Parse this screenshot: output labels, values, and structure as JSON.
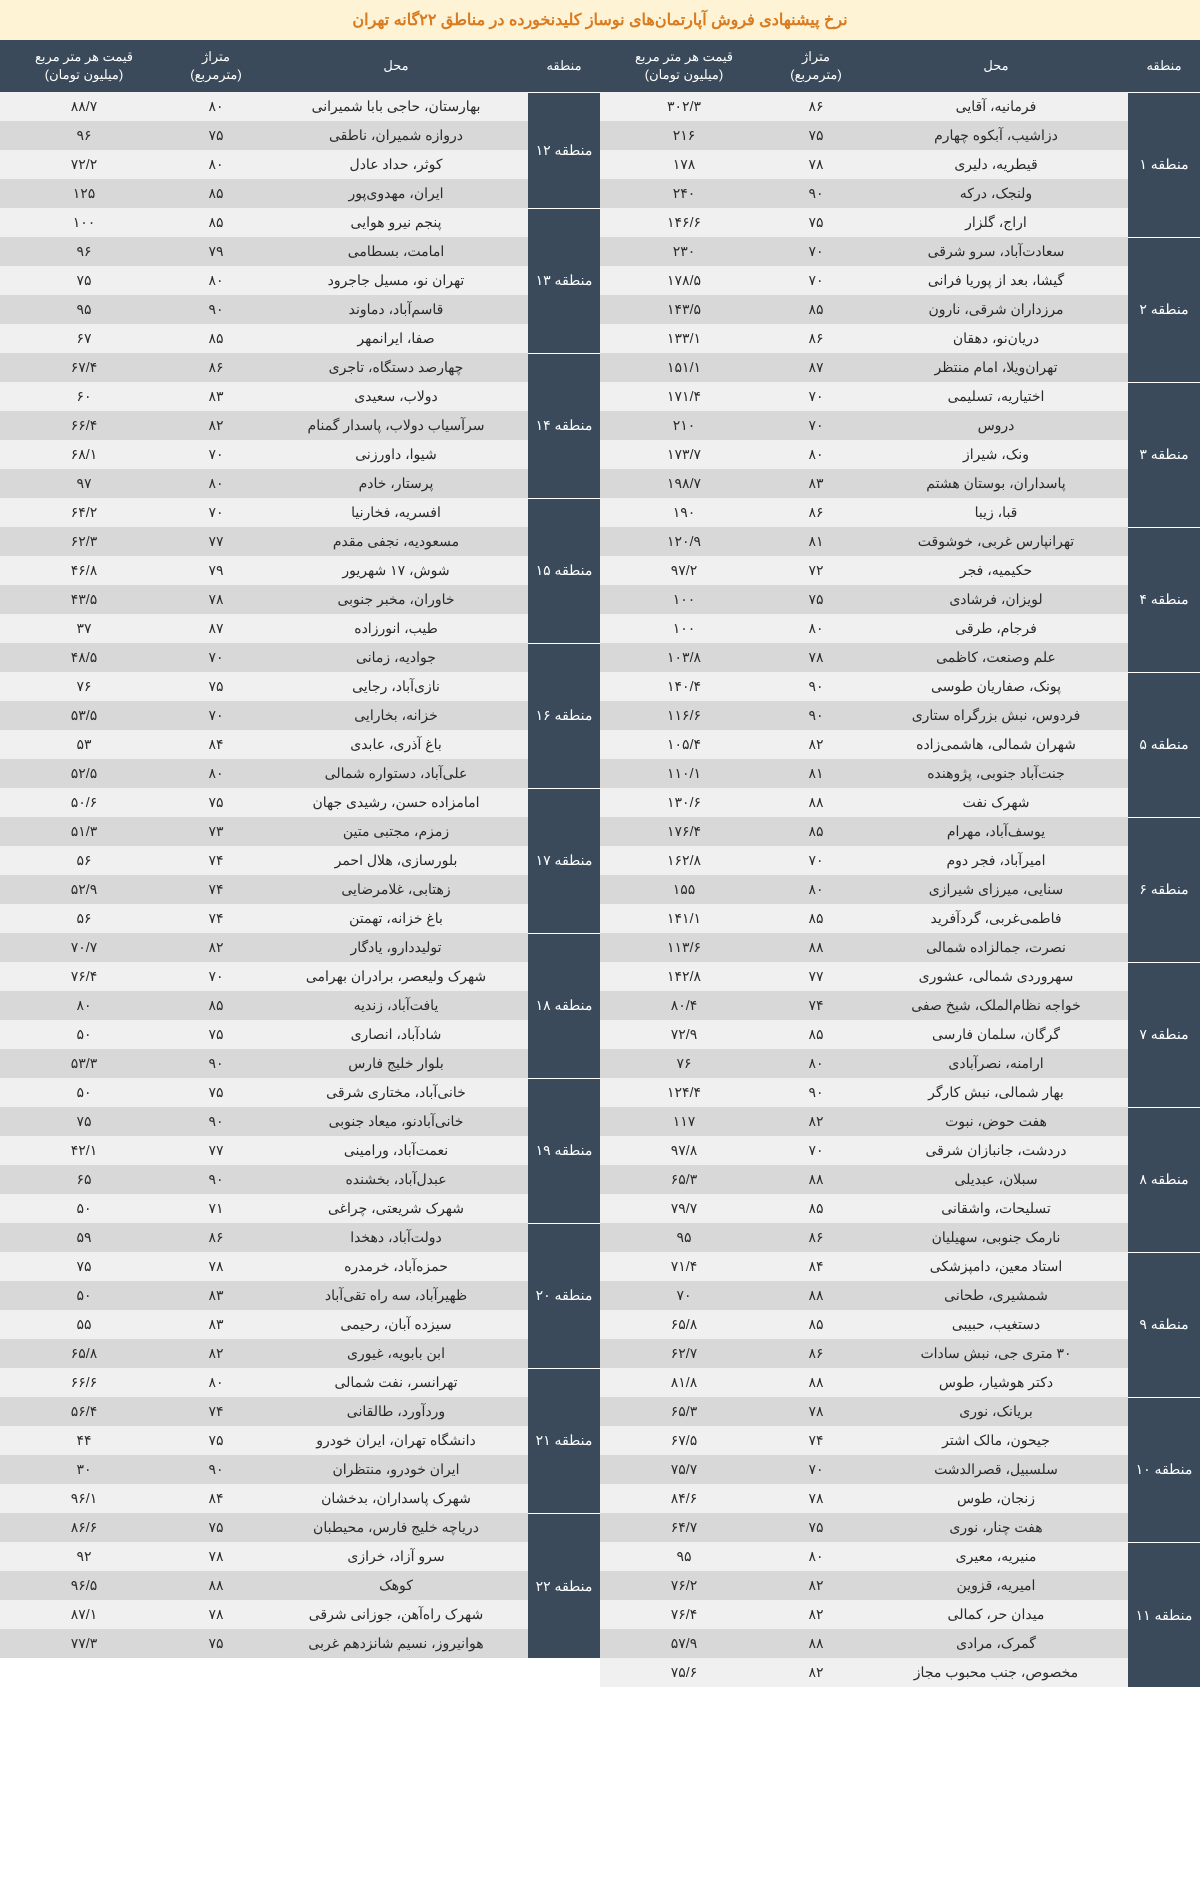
{
  "title": "نرخ پیشنهادی فروش آپارتمان‌های نوساز کلیدنخورده در مناطق ۲۲گانه تهران",
  "headers": {
    "region": "منطقه",
    "location": "محل",
    "area": "متراژ<br>(مترمربع)",
    "price": "قیمت هر متر مربع<br>(میلیون تومان)"
  },
  "colors": {
    "title_bg": "#fff3d6",
    "title_fg": "#d97b1f",
    "header_bg": "#3a4a5a",
    "header_fg": "#ffffff",
    "row_odd": "#f0f0f0",
    "row_even": "#d8d8d8"
  },
  "right": [
    {
      "region": "منطقه ۱",
      "rows": [
        {
          "loc": "فرمانیه، آقایی",
          "area": "۸۶",
          "price": "۳۰۲/۳"
        },
        {
          "loc": "دزاشیب، آبکوه چهارم",
          "area": "۷۵",
          "price": "۲۱۶"
        },
        {
          "loc": "قیطریه، دلیری",
          "area": "۷۸",
          "price": "۱۷۸"
        },
        {
          "loc": "ولنجک، درکه",
          "area": "۹۰",
          "price": "۲۴۰"
        },
        {
          "loc": "اراج، گلزار",
          "area": "۷۵",
          "price": "۱۴۶/۶"
        }
      ]
    },
    {
      "region": "منطقه ۲",
      "rows": [
        {
          "loc": "سعادت‌آباد، سرو شرقی",
          "area": "۷۰",
          "price": "۲۳۰"
        },
        {
          "loc": "گیشا، بعد از پوریا فرانی",
          "area": "۷۰",
          "price": "۱۷۸/۵"
        },
        {
          "loc": "مرزداران شرقی، نارون",
          "area": "۸۵",
          "price": "۱۴۳/۵"
        },
        {
          "loc": "دریان‌نو، دهقان",
          "area": "۸۶",
          "price": "۱۳۳/۱"
        },
        {
          "loc": "تهران‌ویلا، امام منتظر",
          "area": "۸۷",
          "price": "۱۵۱/۱"
        }
      ]
    },
    {
      "region": "منطقه ۳",
      "rows": [
        {
          "loc": "اختیاریه، تسلیمی",
          "area": "۷۰",
          "price": "۱۷۱/۴"
        },
        {
          "loc": "دروس",
          "area": "۷۰",
          "price": "۲۱۰"
        },
        {
          "loc": "ونک، شیراز",
          "area": "۸۰",
          "price": "۱۷۳/۷"
        },
        {
          "loc": "پاسداران، بوستان هشتم",
          "area": "۸۳",
          "price": "۱۹۸/۷"
        },
        {
          "loc": "قبا، زیبا",
          "area": "۸۶",
          "price": "۱۹۰"
        }
      ]
    },
    {
      "region": "منطقه ۴",
      "rows": [
        {
          "loc": "تهرانپارس غربی، خوشوقت",
          "area": "۸۱",
          "price": "۱۲۰/۹"
        },
        {
          "loc": "حکیمیه، فجر",
          "area": "۷۲",
          "price": "۹۷/۲"
        },
        {
          "loc": "لویزان، فرشادی",
          "area": "۷۵",
          "price": "۱۰۰"
        },
        {
          "loc": "فرجام، طرقی",
          "area": "۸۰",
          "price": "۱۰۰"
        },
        {
          "loc": "علم وصنعت، کاظمی",
          "area": "۷۸",
          "price": "۱۰۳/۸"
        }
      ]
    },
    {
      "region": "منطقه ۵",
      "rows": [
        {
          "loc": "پونک، صفاریان طوسی",
          "area": "۹۰",
          "price": "۱۴۰/۴"
        },
        {
          "loc": "فردوس، نبش بزرگراه ستاری",
          "area": "۹۰",
          "price": "۱۱۶/۶"
        },
        {
          "loc": "شهران شمالی، هاشمی‌زاده",
          "area": "۸۲",
          "price": "۱۰۵/۴"
        },
        {
          "loc": "جنت‌آباد جنوبی، پژوهنده",
          "area": "۸۱",
          "price": "۱۱۰/۱"
        },
        {
          "loc": "شهرک نفت",
          "area": "۸۸",
          "price": "۱۳۰/۶"
        }
      ]
    },
    {
      "region": "منطقه ۶",
      "rows": [
        {
          "loc": "یوسف‌آباد، مهرام",
          "area": "۸۵",
          "price": "۱۷۶/۴"
        },
        {
          "loc": "امیرآباد، فجر دوم",
          "area": "۷۰",
          "price": "۱۶۲/۸"
        },
        {
          "loc": "سنایی، میرزای شیرازی",
          "area": "۸۰",
          "price": "۱۵۵"
        },
        {
          "loc": "فاطمی‌غربی، گردآفرید",
          "area": "۸۵",
          "price": "۱۴۱/۱"
        },
        {
          "loc": "نصرت، جمالزاده شمالی",
          "area": "۸۸",
          "price": "۱۱۳/۶"
        }
      ]
    },
    {
      "region": "منطقه ۷",
      "rows": [
        {
          "loc": "سهروردی شمالی، عشوری",
          "area": "۷۷",
          "price": "۱۴۲/۸"
        },
        {
          "loc": "خواجه نظام‌الملک، شیخ صفی",
          "area": "۷۴",
          "price": "۸۰/۴"
        },
        {
          "loc": "گرگان، سلمان فارسی",
          "area": "۸۵",
          "price": "۷۲/۹"
        },
        {
          "loc": "ارامنه، نصرآبادی",
          "area": "۸۰",
          "price": "۷۶"
        },
        {
          "loc": "بهار شمالی، نبش کارگر",
          "area": "۹۰",
          "price": "۱۲۴/۴"
        }
      ]
    },
    {
      "region": "منطقه ۸",
      "rows": [
        {
          "loc": "هفت حوض، نبوت",
          "area": "۸۲",
          "price": "۱۱۷"
        },
        {
          "loc": "دردشت، جانبازان شرقی",
          "area": "۷۰",
          "price": "۹۷/۸"
        },
        {
          "loc": "سبلان، عبدیلی",
          "area": "۸۸",
          "price": "۶۵/۳"
        },
        {
          "loc": "تسلیحات، واشقانی",
          "area": "۸۵",
          "price": "۷۹/۷"
        },
        {
          "loc": "نارمک جنوبی، سهیلیان",
          "area": "۸۶",
          "price": "۹۵"
        }
      ]
    },
    {
      "region": "منطقه ۹",
      "rows": [
        {
          "loc": "استاد معین، دامپزشکی",
          "area": "۸۴",
          "price": "۷۱/۴"
        },
        {
          "loc": "شمشیری، طحانی",
          "area": "۸۸",
          "price": "۷۰"
        },
        {
          "loc": "دستغیب، حبیبی",
          "area": "۸۵",
          "price": "۶۵/۸"
        },
        {
          "loc": "۳۰ متری جی، نبش سادات",
          "area": "۸۶",
          "price": "۶۲/۷"
        },
        {
          "loc": "دکتر هوشیار، طوس",
          "area": "۸۸",
          "price": "۸۱/۸"
        }
      ]
    },
    {
      "region": "منطقه ۱۰",
      "rows": [
        {
          "loc": "بریانک، نوری",
          "area": "۷۸",
          "price": "۶۵/۳"
        },
        {
          "loc": "جیحون، مالک اشتر",
          "area": "۷۴",
          "price": "۶۷/۵"
        },
        {
          "loc": "سلسبیل، قصرالدشت",
          "area": "۷۰",
          "price": "۷۵/۷"
        },
        {
          "loc": "زنجان، طوس",
          "area": "۷۸",
          "price": "۸۴/۶"
        },
        {
          "loc": "هفت چنار، نوری",
          "area": "۷۵",
          "price": "۶۴/۷"
        }
      ]
    },
    {
      "region": "منطقه ۱۱",
      "rows": [
        {
          "loc": "منیریه، معیری",
          "area": "۸۰",
          "price": "۹۵"
        },
        {
          "loc": "امیریه، قزوین",
          "area": "۸۲",
          "price": "۷۶/۲"
        },
        {
          "loc": "میدان حر، کمالی",
          "area": "۸۲",
          "price": "۷۶/۴"
        },
        {
          "loc": "گمرک، مرادی",
          "area": "۸۸",
          "price": "۵۷/۹"
        },
        {
          "loc": "مخصوص، جنب محبوب مجاز",
          "area": "۸۲",
          "price": "۷۵/۶"
        }
      ]
    }
  ],
  "left": [
    {
      "region": "منطقه ۱۲",
      "rows": [
        {
          "loc": "بهارستان، حاجی بابا شمیرانی",
          "area": "۸۰",
          "price": "۸۸/۷"
        },
        {
          "loc": "دروازه شمیران، ناطقی",
          "area": "۷۵",
          "price": "۹۶"
        },
        {
          "loc": "کوثر، حداد عادل",
          "area": "۸۰",
          "price": "۷۲/۲"
        },
        {
          "loc": "ایران، مهدوی‌پور",
          "area": "۸۵",
          "price": "۱۲۵"
        }
      ]
    },
    {
      "region": "منطقه ۱۳",
      "rows": [
        {
          "loc": "پنجم نیرو هوایی",
          "area": "۸۵",
          "price": "۱۰۰"
        },
        {
          "loc": "امامت، بسطامی",
          "area": "۷۹",
          "price": "۹۶"
        },
        {
          "loc": "تهران نو، مسیل جاجرود",
          "area": "۸۰",
          "price": "۷۵"
        },
        {
          "loc": "قاسم‌آباد، دماوند",
          "area": "۹۰",
          "price": "۹۵"
        },
        {
          "loc": "صفا، ایرانمهر",
          "area": "۸۵",
          "price": "۶۷"
        }
      ]
    },
    {
      "region": "منطقه ۱۴",
      "rows": [
        {
          "loc": "چهارصد دستگاه، تاجری",
          "area": "۸۶",
          "price": "۶۷/۴"
        },
        {
          "loc": "دولاب، سعیدی",
          "area": "۸۳",
          "price": "۶۰"
        },
        {
          "loc": "سرآسیاب دولاب، پاسدار گمنام",
          "area": "۸۲",
          "price": "۶۶/۴"
        },
        {
          "loc": "شیوا، داورزنی",
          "area": "۷۰",
          "price": "۶۸/۱"
        },
        {
          "loc": "پرستار، خادم",
          "area": "۸۰",
          "price": "۹۷"
        }
      ]
    },
    {
      "region": "منطقه ۱۵",
      "rows": [
        {
          "loc": "افسریه، فخارنیا",
          "area": "۷۰",
          "price": "۶۴/۲"
        },
        {
          "loc": "مسعودیه، نجفی مقدم",
          "area": "۷۷",
          "price": "۶۲/۳"
        },
        {
          "loc": "شوش، ۱۷ شهریور",
          "area": "۷۹",
          "price": "۴۶/۸"
        },
        {
          "loc": "خاوران، مخبر جنوبی",
          "area": "۷۸",
          "price": "۴۳/۵"
        },
        {
          "loc": "طیب، انورزاده",
          "area": "۸۷",
          "price": "۳۷"
        }
      ]
    },
    {
      "region": "منطقه ۱۶",
      "rows": [
        {
          "loc": "جوادیه، زمانی",
          "area": "۷۰",
          "price": "۴۸/۵"
        },
        {
          "loc": "نازی‌آباد، رجایی",
          "area": "۷۵",
          "price": "۷۶"
        },
        {
          "loc": "خزانه، بخارایی",
          "area": "۷۰",
          "price": "۵۳/۵"
        },
        {
          "loc": "باغ آذری، عابدی",
          "area": "۸۴",
          "price": "۵۳"
        },
        {
          "loc": "علی‌آباد، دستواره شمالی",
          "area": "۸۰",
          "price": "۵۲/۵"
        }
      ]
    },
    {
      "region": "منطقه ۱۷",
      "rows": [
        {
          "loc": "امامزاده حسن، رشیدی جهان",
          "area": "۷۵",
          "price": "۵۰/۶"
        },
        {
          "loc": "زمزم، مجتبی متین",
          "area": "۷۳",
          "price": "۵۱/۳"
        },
        {
          "loc": "بلورسازی، هلال احمر",
          "area": "۷۴",
          "price": "۵۶"
        },
        {
          "loc": "زهتابی، غلامرضایی",
          "area": "۷۴",
          "price": "۵۲/۹"
        },
        {
          "loc": "باغ خزانه، تهمتن",
          "area": "۷۴",
          "price": "۵۶"
        }
      ]
    },
    {
      "region": "منطقه ۱۸",
      "rows": [
        {
          "loc": "تولیددارو، یادگار",
          "area": "۸۲",
          "price": "۷۰/۷"
        },
        {
          "loc": "شهرک ولیعصر، برادران بهرامی",
          "area": "۷۰",
          "price": "۷۶/۴"
        },
        {
          "loc": "یافت‌آباد، زندیه",
          "area": "۸۵",
          "price": "۸۰"
        },
        {
          "loc": "شادآباد، انصاری",
          "area": "۷۵",
          "price": "۵۰"
        },
        {
          "loc": "بلوار خلیج فارس",
          "area": "۹۰",
          "price": "۵۳/۳"
        }
      ]
    },
    {
      "region": "منطقه ۱۹",
      "rows": [
        {
          "loc": "خانی‌آباد، مختاری شرقی",
          "area": "۷۵",
          "price": "۵۰"
        },
        {
          "loc": "خانی‌آبادنو، میعاد جنوبی",
          "area": "۹۰",
          "price": "۷۵"
        },
        {
          "loc": "نعمت‌آباد، ورامینی",
          "area": "۷۷",
          "price": "۴۲/۱"
        },
        {
          "loc": "عبدل‌آباد، بخشنده",
          "area": "۹۰",
          "price": "۶۵"
        },
        {
          "loc": "شهرک شریعتی، چراغی",
          "area": "۷۱",
          "price": "۵۰"
        }
      ]
    },
    {
      "region": "منطقه ۲۰",
      "rows": [
        {
          "loc": "دولت‌آباد، دهخدا",
          "area": "۸۶",
          "price": "۵۹"
        },
        {
          "loc": "حمزه‌آباد، خرمدره",
          "area": "۷۸",
          "price": "۷۵"
        },
        {
          "loc": "ظهیرآباد، سه راه تقی‌آباد",
          "area": "۸۳",
          "price": "۵۰"
        },
        {
          "loc": "سیزده آبان، رحیمی",
          "area": "۸۳",
          "price": "۵۵"
        },
        {
          "loc": "ابن بابویه، غیوری",
          "area": "۸۲",
          "price": "۶۵/۸"
        }
      ]
    },
    {
      "region": "منطقه ۲۱",
      "rows": [
        {
          "loc": "تهرانسر، نفت شمالی",
          "area": "۸۰",
          "price": "۶۶/۶"
        },
        {
          "loc": "وردآورد، طالقانی",
          "area": "۷۴",
          "price": "۵۶/۴"
        },
        {
          "loc": "دانشگاه تهران، ایران خودرو",
          "area": "۷۵",
          "price": "۴۴"
        },
        {
          "loc": "ایران خودرو، منتظران",
          "area": "۹۰",
          "price": "۳۰"
        },
        {
          "loc": "شهرک پاسداران، بدخشان",
          "area": "۸۴",
          "price": "۹۶/۱"
        }
      ]
    },
    {
      "region": "منطقه ۲۲",
      "rows": [
        {
          "loc": "دریاچه خلیج فارس، محیطبان",
          "area": "۷۵",
          "price": "۸۶/۶"
        },
        {
          "loc": "سرو آزاد، خرازی",
          "area": "۷۸",
          "price": "۹۲"
        },
        {
          "loc": "کوهک",
          "area": "۸۸",
          "price": "۹۶/۵"
        },
        {
          "loc": "شهرک راه‌آهن، جوزانی شرقی",
          "area": "۷۸",
          "price": "۸۷/۱"
        },
        {
          "loc": "هوانیروز، نسیم شانزدهم غربی",
          "area": "۷۵",
          "price": "۷۷/۳"
        }
      ]
    }
  ]
}
